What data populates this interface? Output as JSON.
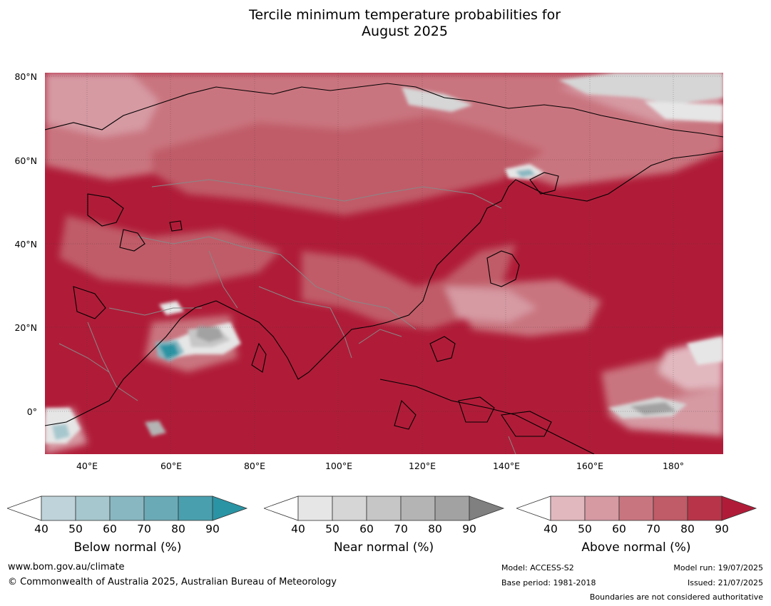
{
  "title_line1": "Tercile minimum temperature probabilities for",
  "title_line2": "August 2025",
  "map": {
    "lat_labels": [
      "80°N",
      "60°N",
      "40°N",
      "20°N",
      "0°"
    ],
    "lon_labels": [
      "40°E",
      "60°E",
      "80°E",
      "100°E",
      "120°E",
      "140°E",
      "160°E",
      "180°"
    ],
    "extent": {
      "lon_min": 30,
      "lon_max": 192,
      "lat_min": -10,
      "lat_max": 81
    }
  },
  "legends": [
    {
      "title": "Below normal (%)",
      "ticks": [
        "40",
        "50",
        "60",
        "70",
        "80",
        "90"
      ],
      "colors": [
        "#ffffff",
        "#bfd4da",
        "#a6c7ce",
        "#88b7c1",
        "#6aaab6",
        "#4a9fae",
        "#2a94a4"
      ]
    },
    {
      "title": "Near normal (%)",
      "ticks": [
        "40",
        "50",
        "60",
        "70",
        "80",
        "90"
      ],
      "colors": [
        "#ffffff",
        "#e6e6e6",
        "#d6d6d6",
        "#c6c6c6",
        "#b4b4b4",
        "#a2a2a2",
        "#808080"
      ]
    },
    {
      "title": "Above normal (%)",
      "ticks": [
        "40",
        "50",
        "60",
        "70",
        "80",
        "90"
      ],
      "colors": [
        "#ffffff",
        "#e2b8bf",
        "#d69aa3",
        "#c9757f",
        "#c05b68",
        "#b83549",
        "#b01c38"
      ]
    }
  ],
  "footer": {
    "website": "www.bom.gov.au/climate",
    "copyright": "© Commonwealth of Australia 2025, Australian Bureau of Meteorology",
    "model": "Model: ACCESS-S2",
    "base_period": "Base period: 1981-2018",
    "model_run": "Model run: 19/07/2025",
    "issued": "Issued: 21/07/2025",
    "boundaries": "Boundaries are not considered authoritative"
  }
}
